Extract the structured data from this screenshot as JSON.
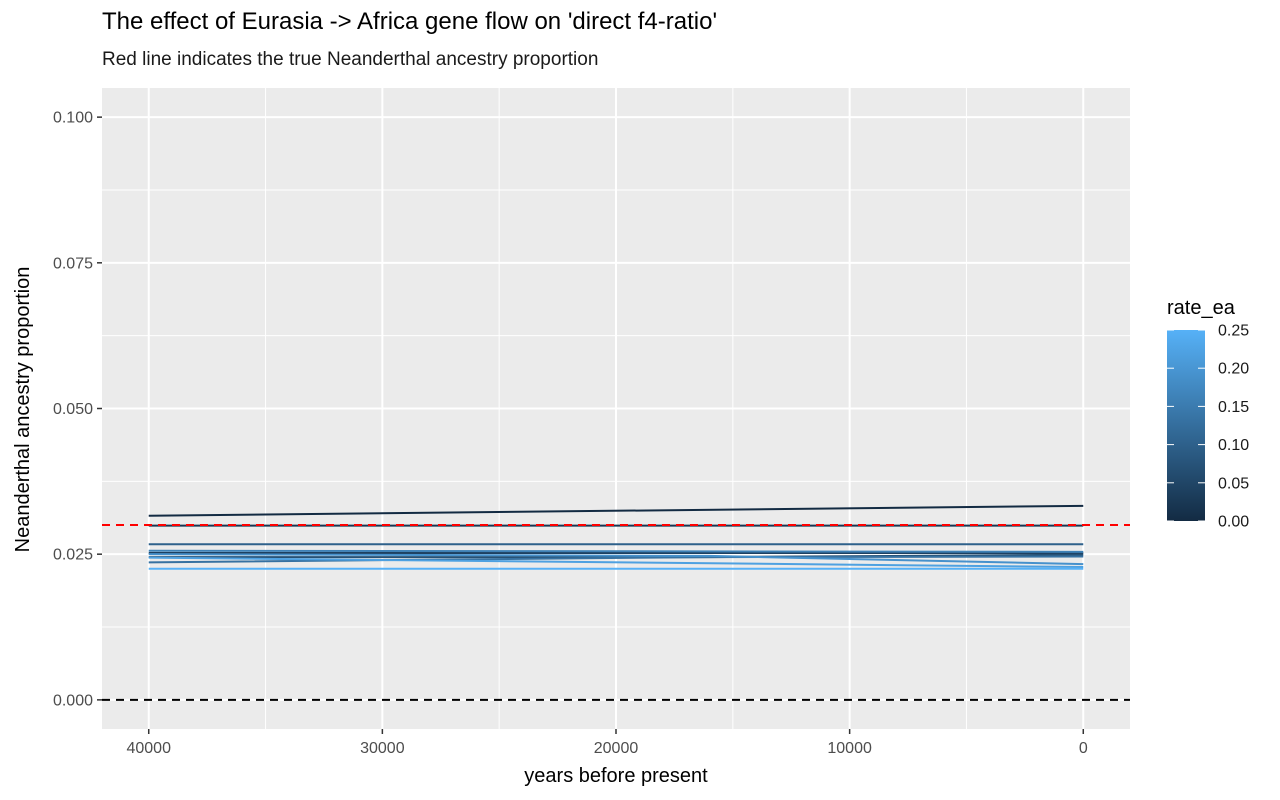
{
  "chart_data": {
    "type": "line",
    "title": "The effect of Eurasia -> Africa gene flow on 'direct f4-ratio'",
    "subtitle": "Red line indicates the true Neanderthal ancestry proportion",
    "xlabel": "years before present",
    "ylabel": "Neanderthal ancestry proportion",
    "x_reversed": true,
    "xlim": [
      42000,
      -2000
    ],
    "ylim": [
      -0.005,
      0.105
    ],
    "x_ticks": [
      40000,
      30000,
      20000,
      10000,
      0
    ],
    "x_tick_labels": [
      "40000",
      "30000",
      "20000",
      "10000",
      "0"
    ],
    "y_ticks": [
      0.0,
      0.025,
      0.05,
      0.075,
      0.1
    ],
    "y_tick_labels": [
      "0.000",
      "0.025",
      "0.050",
      "0.075",
      "0.100"
    ],
    "grid": true,
    "reference_lines": [
      {
        "y": 0.03,
        "color": "#ff0000",
        "style": "dashed"
      },
      {
        "y": 0.0,
        "color": "#000000",
        "style": "dashed"
      }
    ],
    "color_legend": {
      "title": "rate_ea",
      "position": "right",
      "min": 0.0,
      "max": 0.25,
      "ticks": [
        0.25,
        0.2,
        0.15,
        0.1,
        0.05,
        0.0
      ],
      "tick_labels": [
        "0.25",
        "0.20",
        "0.15",
        "0.10",
        "0.05",
        "0.00"
      ],
      "low_color": "#132B43",
      "high_color": "#56B1F7"
    },
    "series": [
      {
        "rate_ea": 0.0,
        "x": [
          40000,
          0
        ],
        "y": [
          0.0316,
          0.0333
        ]
      },
      {
        "rate_ea": 0.02,
        "x": [
          40000,
          0
        ],
        "y": [
          0.0299,
          0.0299
        ]
      },
      {
        "rate_ea": 0.04,
        "x": [
          40000,
          0
        ],
        "y": [
          0.0252,
          0.0252
        ]
      },
      {
        "rate_ea": 0.07,
        "x": [
          40000,
          16000,
          0
        ],
        "y": [
          0.0245,
          0.0245,
          0.0249
        ]
      },
      {
        "rate_ea": 0.1,
        "x": [
          40000,
          0
        ],
        "y": [
          0.0267,
          0.0267
        ]
      },
      {
        "rate_ea": 0.13,
        "x": [
          40000,
          16000,
          0
        ],
        "y": [
          0.0236,
          0.0245,
          0.0246
        ]
      },
      {
        "rate_ea": 0.16,
        "x": [
          40000,
          0
        ],
        "y": [
          0.0256,
          0.0254
        ]
      },
      {
        "rate_ea": 0.19,
        "x": [
          40000,
          16000,
          0
        ],
        "y": [
          0.025,
          0.0247,
          0.0233
        ]
      },
      {
        "rate_ea": 0.22,
        "x": [
          40000,
          0
        ],
        "y": [
          0.0244,
          0.0228
        ]
      },
      {
        "rate_ea": 0.25,
        "x": [
          40000,
          0
        ],
        "y": [
          0.0225,
          0.0225
        ]
      }
    ]
  }
}
